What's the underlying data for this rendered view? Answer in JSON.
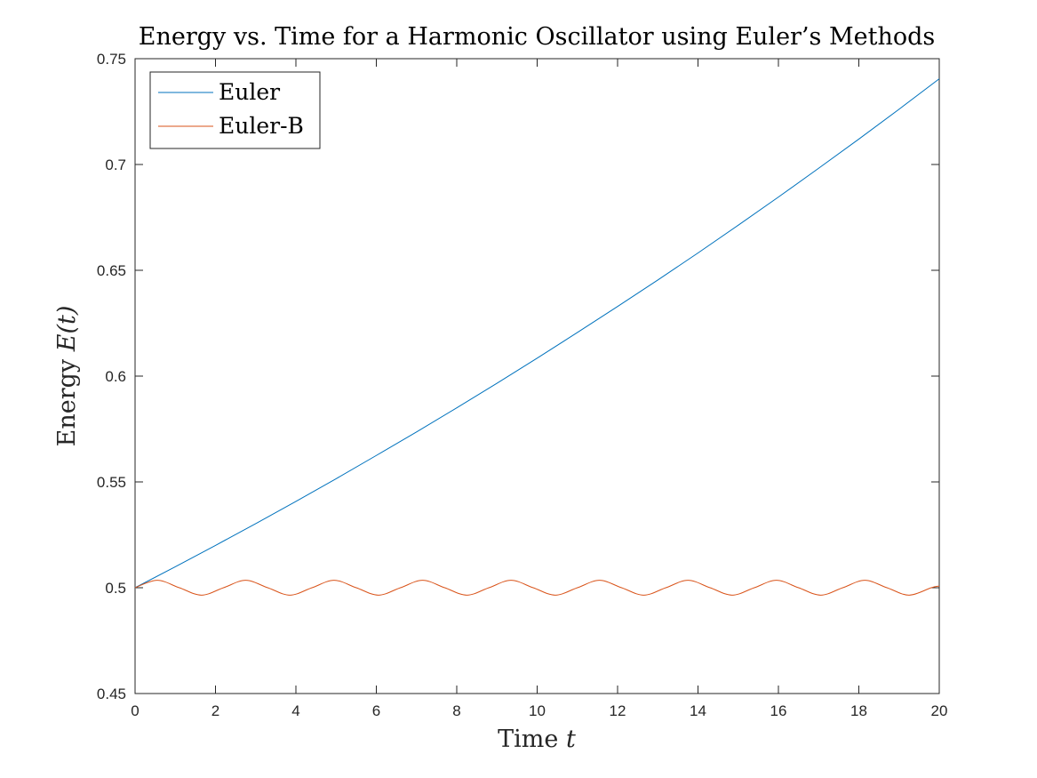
{
  "chart_data": {
    "type": "line",
    "title": "Energy vs. Time for a Harmonic Oscillator using Euler’s Methods",
    "xlabel": "Time",
    "xlabel_var": "t",
    "ylabel": "Energy",
    "ylabel_var": "E(t)",
    "xlim": [
      0,
      20
    ],
    "ylim": [
      0.45,
      0.75
    ],
    "xticks": [
      0,
      2,
      4,
      6,
      8,
      10,
      12,
      14,
      16,
      18,
      20
    ],
    "xtick_labels": [
      "0",
      "2",
      "4",
      "6",
      "8",
      "10",
      "12",
      "14",
      "16",
      "18",
      "20"
    ],
    "yticks": [
      0.45,
      0.5,
      0.55,
      0.6,
      0.65,
      0.7,
      0.75
    ],
    "ytick_labels": [
      "0.45",
      "0.5",
      "0.55",
      "0.6",
      "0.65",
      "0.7",
      "0.75"
    ],
    "grid": false,
    "legend_position": "top-left",
    "series": [
      {
        "name": "Euler",
        "color": "#0072BD",
        "x": [
          0,
          1,
          2,
          3,
          4,
          5,
          6,
          7,
          8,
          9,
          10,
          11,
          12,
          13,
          14,
          15,
          16,
          17,
          18,
          19,
          20
        ],
        "y": [
          0.5,
          0.5099,
          0.52,
          0.5303,
          0.5408,
          0.5515,
          0.5625,
          0.5736,
          0.585,
          0.5966,
          0.6085,
          0.6206,
          0.6329,
          0.6454,
          0.6582,
          0.6713,
          0.6846,
          0.6982,
          0.712,
          0.7261,
          0.7405
        ]
      },
      {
        "name": "Euler-B",
        "color": "#D95319",
        "x": [
          0,
          0.55,
          1.1,
          1.65,
          2.2,
          2.75,
          3.3,
          3.85,
          4.4,
          4.95,
          5.5,
          6.05,
          6.6,
          7.15,
          7.7,
          8.25,
          8.8,
          9.35,
          9.9,
          10.45,
          11.0,
          11.55,
          12.1,
          12.65,
          13.2,
          13.75,
          14.3,
          14.85,
          15.4,
          15.95,
          16.5,
          17.05,
          17.6,
          18.15,
          18.7,
          19.25,
          19.8,
          20
        ],
        "y": [
          0.5,
          0.5035,
          0.5,
          0.4965,
          0.5,
          0.5035,
          0.5,
          0.4965,
          0.5,
          0.5035,
          0.5,
          0.4965,
          0.5,
          0.5035,
          0.5,
          0.4965,
          0.5,
          0.5035,
          0.5,
          0.4965,
          0.5,
          0.5035,
          0.5,
          0.4965,
          0.5,
          0.5035,
          0.5,
          0.4965,
          0.5,
          0.5035,
          0.5,
          0.4965,
          0.5,
          0.5035,
          0.5,
          0.4965,
          0.5,
          0.5008
        ]
      }
    ]
  }
}
